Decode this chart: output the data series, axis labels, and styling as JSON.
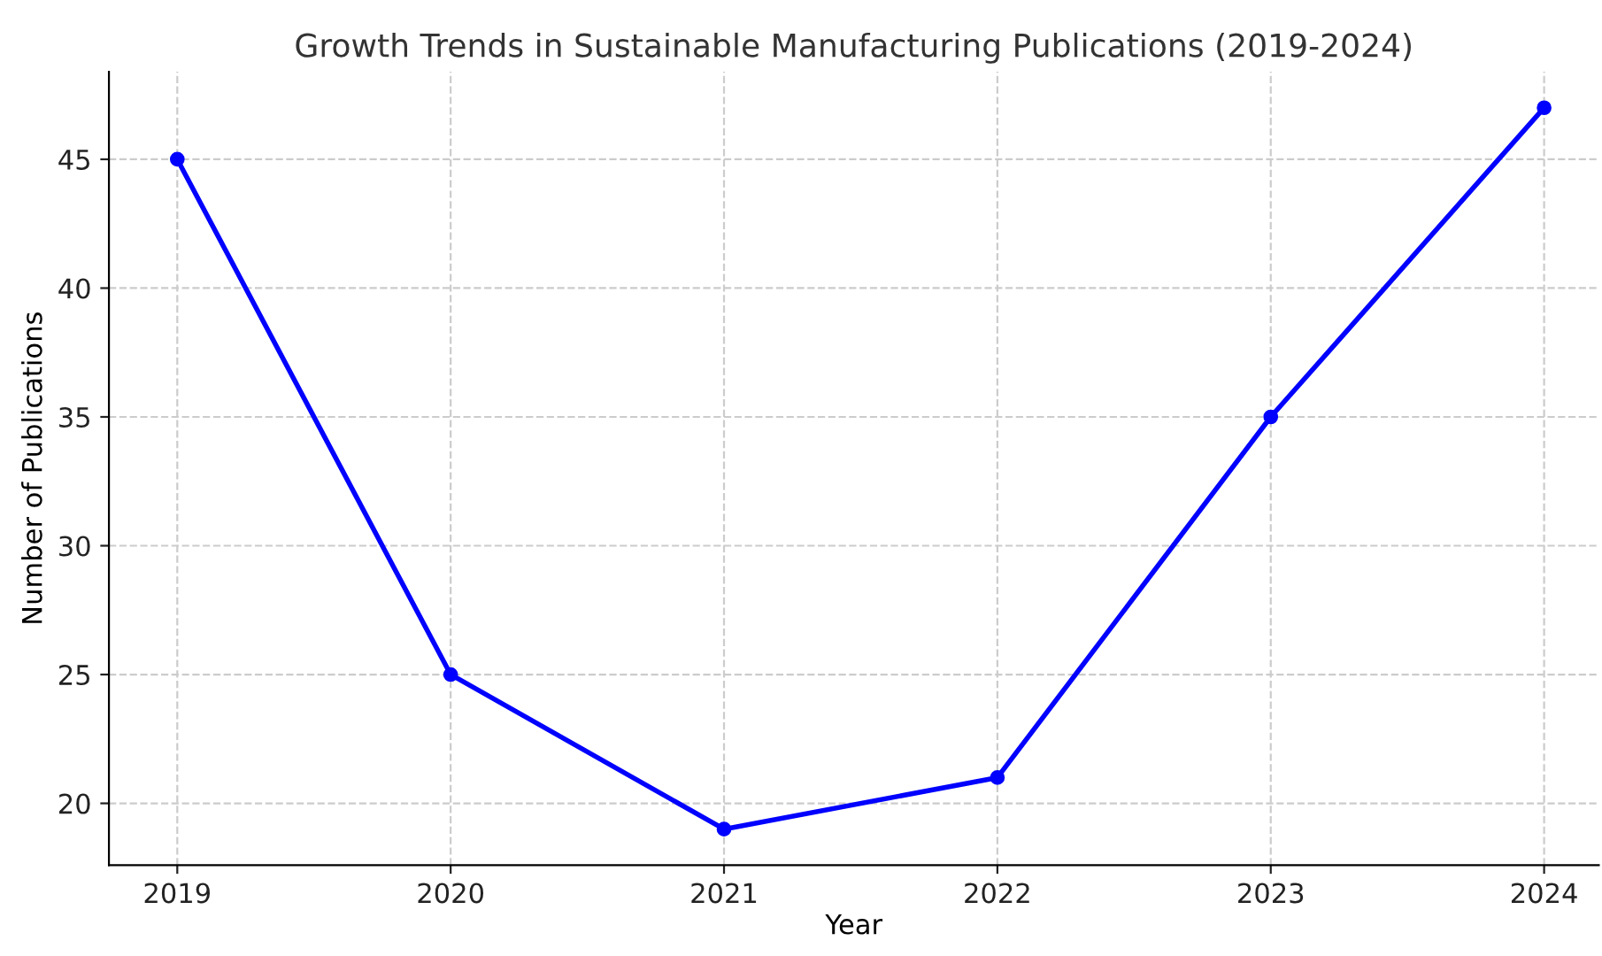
{
  "chart_data": {
    "type": "line",
    "title": "Growth Trends in Sustainable Manufacturing Publications (2019-2024)",
    "xlabel": "Year",
    "ylabel": "Number of Publications",
    "x": [
      2019,
      2020,
      2021,
      2022,
      2023,
      2024
    ],
    "series": [
      {
        "color": "#0000ff",
        "values": [
          45,
          25,
          19,
          21,
          35,
          47
        ]
      }
    ],
    "xlim": [
      2018.75,
      2024.2
    ],
    "xticks": [
      2019,
      2020,
      2021,
      2022,
      2023,
      2024
    ],
    "ylim": [
      17.6,
      48.4
    ],
    "yticks": [
      20,
      25,
      30,
      35,
      40,
      45
    ],
    "grid": true,
    "marker": "circle",
    "line_style": "solid"
  }
}
